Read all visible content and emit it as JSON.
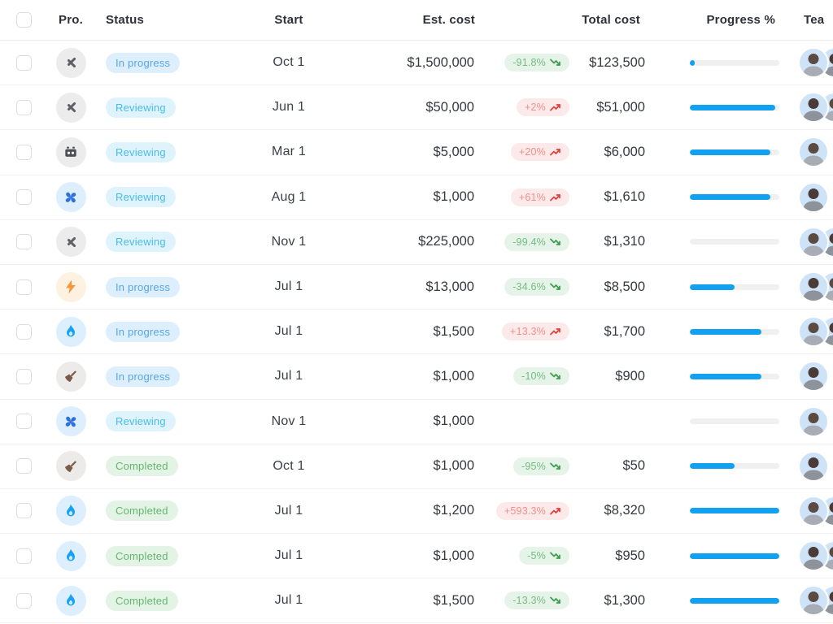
{
  "table": {
    "columns": [
      {
        "label": "Pro."
      },
      {
        "label": "Status"
      },
      {
        "label": "Start"
      },
      {
        "label": "Est. cost"
      },
      {
        "label": "Total cost"
      },
      {
        "label": "Progress %"
      },
      {
        "label": "Tea"
      }
    ],
    "rows": [
      {
        "icon": "tools",
        "status": "In progress",
        "status_key": "in_progress",
        "start": "Oct 1",
        "est_cost": "$1,500,000",
        "change": "-91.8%",
        "trend": "down",
        "total_cost": "$123,500",
        "progress": 5,
        "team": 2
      },
      {
        "icon": "tools",
        "status": "Reviewing",
        "status_key": "reviewing",
        "start": "Jun 1",
        "est_cost": "$50,000",
        "change": "+2%",
        "trend": "up",
        "total_cost": "$51,000",
        "progress": 95,
        "team": 2
      },
      {
        "icon": "robot",
        "status": "Reviewing",
        "status_key": "reviewing",
        "start": "Mar 1",
        "est_cost": "$5,000",
        "change": "+20%",
        "trend": "up",
        "total_cost": "$6,000",
        "progress": 90,
        "team": 1
      },
      {
        "icon": "fan",
        "status": "Reviewing",
        "status_key": "reviewing",
        "start": "Aug 1",
        "est_cost": "$1,000",
        "change": "+61%",
        "trend": "up",
        "total_cost": "$1,610",
        "progress": 90,
        "team": 1
      },
      {
        "icon": "tools",
        "status": "Reviewing",
        "status_key": "reviewing",
        "start": "Nov 1",
        "est_cost": "$225,000",
        "change": "-99.4%",
        "trend": "down",
        "total_cost": "$1,310",
        "progress": 0,
        "team": 2
      },
      {
        "icon": "bolt",
        "status": "In progress",
        "status_key": "in_progress",
        "start": "Jul 1",
        "est_cost": "$13,000",
        "change": "-34.6%",
        "trend": "down",
        "total_cost": "$8,500",
        "progress": 50,
        "team": 2
      },
      {
        "icon": "flame",
        "status": "In progress",
        "status_key": "in_progress",
        "start": "Jul 1",
        "est_cost": "$1,500",
        "change": "+13.3%",
        "trend": "up",
        "total_cost": "$1,700",
        "progress": 80,
        "team": 2
      },
      {
        "icon": "broom",
        "status": "In progress",
        "status_key": "in_progress",
        "start": "Jul 1",
        "est_cost": "$1,000",
        "change": "-10%",
        "trend": "down",
        "total_cost": "$900",
        "progress": 80,
        "team": 1
      },
      {
        "icon": "fan",
        "status": "Reviewing",
        "status_key": "reviewing",
        "start": "Nov 1",
        "est_cost": "$1,000",
        "change": null,
        "trend": null,
        "total_cost": null,
        "progress": 0,
        "team": 1
      },
      {
        "icon": "broom",
        "status": "Completed",
        "status_key": "completed",
        "start": "Oct 1",
        "est_cost": "$1,000",
        "change": "-95%",
        "trend": "down",
        "total_cost": "$50",
        "progress": 50,
        "team": 1
      },
      {
        "icon": "flame",
        "status": "Completed",
        "status_key": "completed",
        "start": "Jul 1",
        "est_cost": "$1,200",
        "change": "+593.3%",
        "trend": "up",
        "total_cost": "$8,320",
        "progress": 100,
        "team": 2
      },
      {
        "icon": "flame",
        "status": "Completed",
        "status_key": "completed",
        "start": "Jul 1",
        "est_cost": "$1,000",
        "change": "-5%",
        "trend": "down",
        "total_cost": "$950",
        "progress": 100,
        "team": 2
      },
      {
        "icon": "flame",
        "status": "Completed",
        "status_key": "completed",
        "start": "Jul 1",
        "est_cost": "$1,500",
        "change": "-13.3%",
        "trend": "down",
        "total_cost": "$1,300",
        "progress": 100,
        "team": 2
      }
    ],
    "colors": {
      "progress_fill": "#12a1f1",
      "progress_track": "#f0f0f1",
      "status_in_progress_text": "#58a6e8",
      "status_in_progress_bg": "#ddeefc",
      "status_reviewing_text": "#49bce8",
      "status_reviewing_bg": "#def3fc",
      "status_completed_text": "#64b56e",
      "status_completed_bg": "#e3f3e5",
      "trend_down_text": "#74bd80",
      "trend_down_bg": "#e6f3e9",
      "trend_up_text": "#f28f8a",
      "trend_up_bg": "#fce9e9"
    }
  }
}
